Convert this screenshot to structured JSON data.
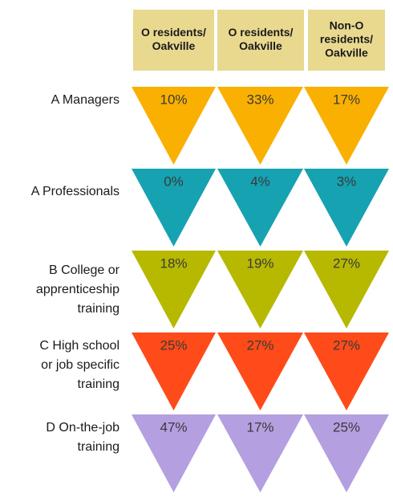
{
  "table": {
    "headers": [
      [
        "O residents/",
        "Oakville"
      ],
      [
        "O residents/",
        "Oakville"
      ],
      [
        "Non-O",
        "residents/",
        "Oakville"
      ]
    ],
    "rows": [
      {
        "label": [
          "A Managers"
        ],
        "color": "#f9b000",
        "cells": [
          "10%",
          "33%",
          "17%"
        ]
      },
      {
        "label": [
          "A Professionals"
        ],
        "color": "#16a2b1",
        "cells": [
          "0%",
          "4%",
          "3%"
        ]
      },
      {
        "label": [
          "B College or",
          "apprenticeship",
          "training"
        ],
        "color": "#b7b800",
        "cells": [
          "18%",
          "19%",
          "27%"
        ]
      },
      {
        "label": [
          "C High school",
          "or job specific",
          "training"
        ],
        "color": "#ff4b19",
        "cells": [
          "25%",
          "27%",
          "27%"
        ]
      },
      {
        "label": [
          "D On-the-job",
          "training"
        ],
        "color": "#b49fe0",
        "cells": [
          "47%",
          "17%",
          "25%"
        ]
      }
    ]
  }
}
